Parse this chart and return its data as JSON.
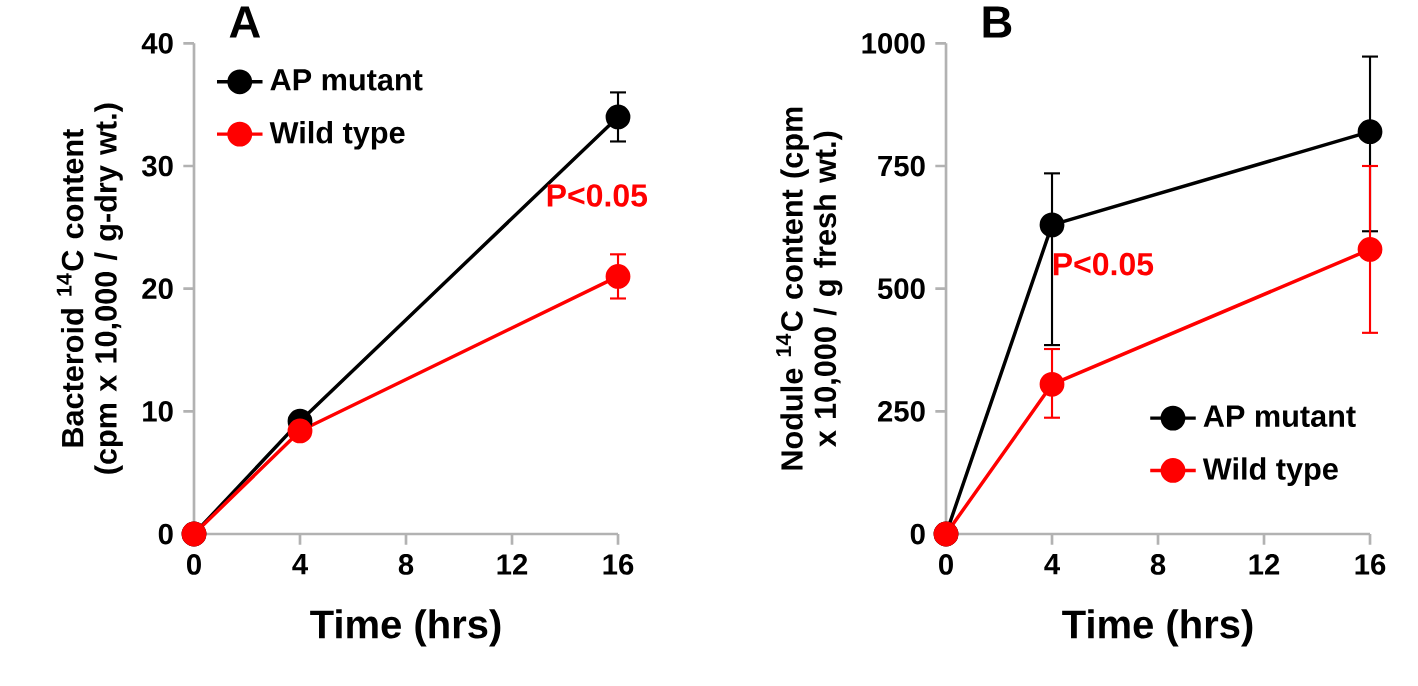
{
  "chart_data": [
    {
      "type": "line",
      "title": "A",
      "xlabel": "Time (hrs)",
      "ylabel": "Bacteroid $^{14}$C content (cpm x 10,000 / g-dry wt.)",
      "x": [
        0,
        4,
        16
      ],
      "xlim": [
        0,
        16
      ],
      "xticks": [
        0,
        4,
        8,
        12,
        16
      ],
      "ylim": [
        0,
        40
      ],
      "yticks": [
        0,
        10,
        20,
        30,
        40
      ],
      "marker": "circle",
      "legend": "top left",
      "grid": false,
      "series": [
        {
          "name": "AP mutant",
          "color": "#000000",
          "values": [
            0,
            9.2,
            34
          ],
          "errors": [
            null,
            null,
            2
          ]
        },
        {
          "name": "Wild type",
          "color": "#ff0000",
          "values": [
            0,
            8.4,
            21
          ],
          "errors": [
            null,
            null,
            1.8
          ]
        }
      ],
      "annotations": [
        "P<0.05"
      ]
    },
    {
      "type": "line",
      "title": "B",
      "xlabel": "Time (hrs)",
      "ylabel": "Nodule $^{14}$C content (cpm x 10,000 / g fresh wt.)",
      "x": [
        0,
        4,
        16
      ],
      "xlim": [
        0,
        16
      ],
      "xticks": [
        0,
        4,
        8,
        12,
        16
      ],
      "ylim": [
        0,
        1000
      ],
      "yticks": [
        0,
        250,
        500,
        750,
        1000
      ],
      "marker": "circle",
      "legend": "bottom right",
      "grid": false,
      "series": [
        {
          "name": "AP mutant",
          "color": "#000000",
          "values": [
            0,
            630,
            820
          ],
          "errors": [
            null,
            [
              385,
              735
            ],
            [
              617,
              973
            ]
          ]
        },
        {
          "name": "Wild type",
          "color": "#ff0000",
          "values": [
            0,
            305,
            580
          ],
          "errors": [
            null,
            [
              237,
              377
            ],
            [
              410,
              750
            ]
          ]
        }
      ],
      "annotations": [
        "P<0.05"
      ]
    }
  ]
}
